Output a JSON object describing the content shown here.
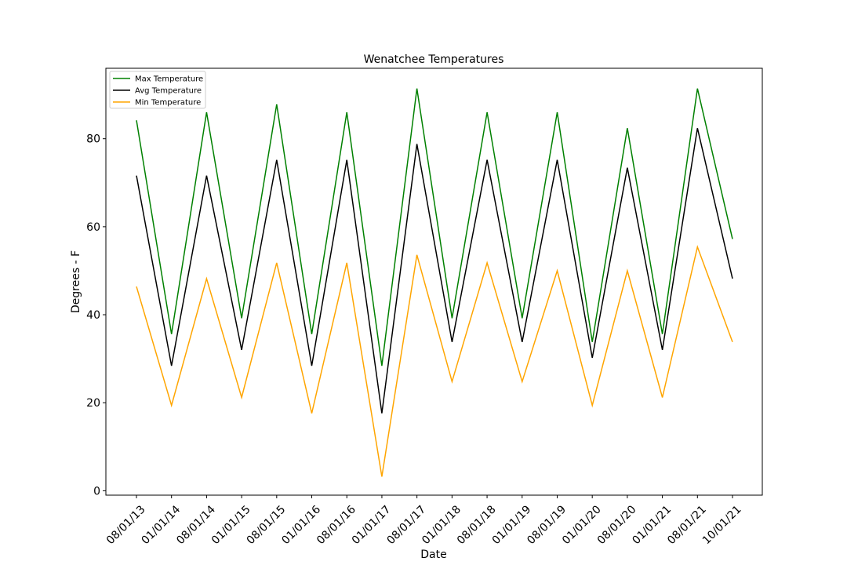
{
  "chart_data": {
    "type": "line",
    "title": "Wenatchee Temperatures",
    "xlabel": "Date",
    "ylabel": "Degrees - F",
    "ylim": [
      -1,
      96
    ],
    "yticks": [
      0,
      20,
      40,
      60,
      80
    ],
    "categories": [
      "08/01/13",
      "01/01/14",
      "08/01/14",
      "01/01/15",
      "08/01/15",
      "01/01/16",
      "08/01/16",
      "01/01/17",
      "08/01/17",
      "01/01/18",
      "08/01/18",
      "01/01/19",
      "08/01/19",
      "01/01/20",
      "08/01/20",
      "01/01/21",
      "08/01/21",
      "10/01/21"
    ],
    "legend_position": "upper-left",
    "grid": false,
    "series": [
      {
        "name": "Max Temperature",
        "color": "#008000",
        "values": [
          84.2,
          35.6,
          86.0,
          39.2,
          87.8,
          35.6,
          86.0,
          28.4,
          91.4,
          39.2,
          86.0,
          39.2,
          86.0,
          33.8,
          82.4,
          35.6,
          91.4,
          57.2
        ]
      },
      {
        "name": "Avg Temperature",
        "color": "#000000",
        "values": [
          71.6,
          28.4,
          71.6,
          32.0,
          75.2,
          28.4,
          75.2,
          17.6,
          78.8,
          33.8,
          75.2,
          33.8,
          75.2,
          30.2,
          73.4,
          32.0,
          82.4,
          48.2
        ]
      },
      {
        "name": "Min Temperature",
        "color": "#FFA500",
        "values": [
          46.4,
          19.4,
          48.2,
          21.2,
          51.8,
          17.6,
          51.8,
          3.2,
          53.6,
          24.8,
          51.8,
          24.8,
          50.0,
          19.4,
          50.0,
          21.2,
          55.4,
          33.8
        ]
      }
    ]
  }
}
